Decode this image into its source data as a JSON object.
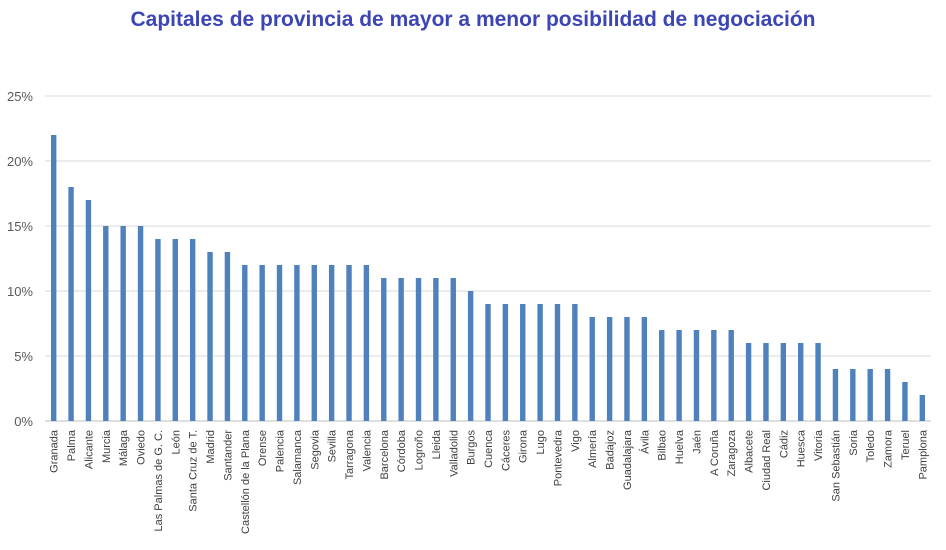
{
  "chart_data": {
    "type": "bar",
    "title": "Capitales de provincia de mayor a menor posibilidad de negociación",
    "xlabel": "",
    "ylabel": "",
    "ylim": [
      0,
      25
    ],
    "yticks": [
      "0%",
      "5%",
      "10%",
      "15%",
      "20%",
      "25%"
    ],
    "grid": true,
    "bar_color": "#4f81bd",
    "categories": [
      "Granada",
      "Palma",
      "Alicante",
      "Murcia",
      "Málaga",
      "Oviedo",
      "Las Palmas de G. C.",
      "León",
      "Santa Cruz de T.",
      "Madrid",
      "Santander",
      "Castellón de la Plana",
      "Orense",
      "Palencia",
      "Salamanca",
      "Segovia",
      "Sevilla",
      "Tarragona",
      "Valencia",
      "Barcelona",
      "Córdoba",
      "Logroño",
      "Lleida",
      "Valladolid",
      "Burgos",
      "Cuenca",
      "Cáceres",
      "Girona",
      "Lugo",
      "Pontevedra",
      "Vigo",
      "Almería",
      "Badajoz",
      "Guadalajara",
      "Ávila",
      "Bilbao",
      "Huelva",
      "Jaén",
      "A Coruña",
      "Zaragoza",
      "Albacete",
      "Ciudad Real",
      "Cádiz",
      "Huesca",
      "Vitoria",
      "San Sebastián",
      "Soria",
      "Toledo",
      "Zamora",
      "Teruel",
      "Pamplona"
    ],
    "values": [
      22,
      18,
      17,
      15,
      15,
      15,
      14,
      14,
      14,
      13,
      13,
      12,
      12,
      12,
      12,
      12,
      12,
      12,
      12,
      11,
      11,
      11,
      11,
      11,
      10,
      9,
      9,
      9,
      9,
      9,
      9,
      8,
      8,
      8,
      8,
      7,
      7,
      7,
      7,
      7,
      6,
      6,
      6,
      6,
      6,
      4,
      4,
      4,
      4,
      3,
      2
    ]
  }
}
